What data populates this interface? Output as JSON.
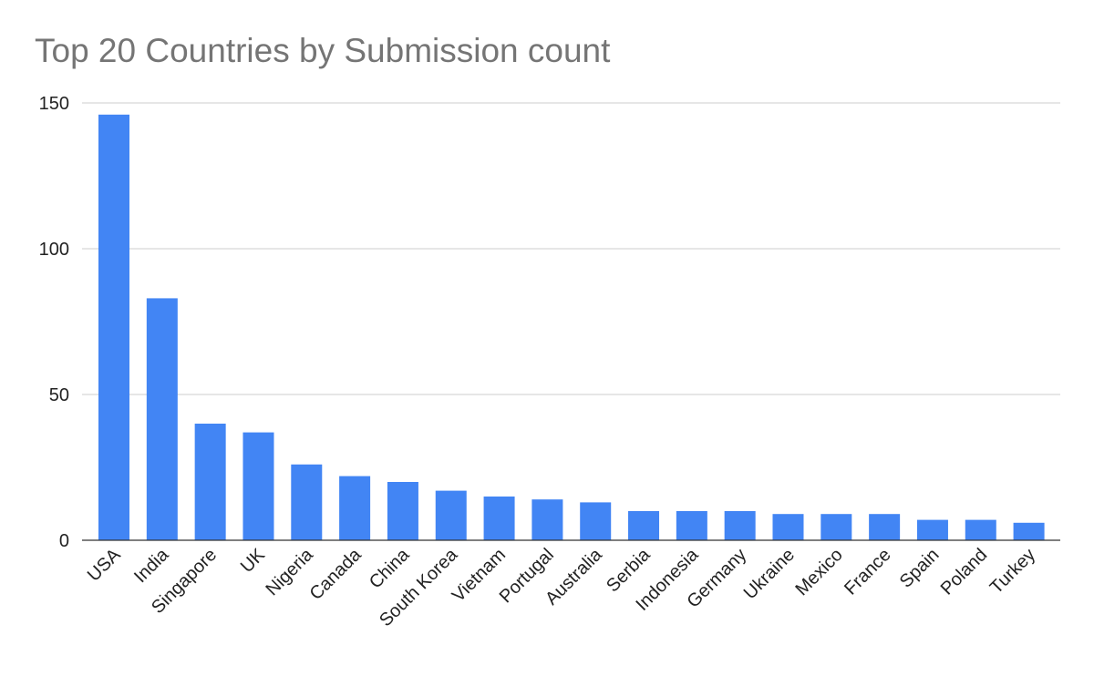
{
  "chart_data": {
    "type": "bar",
    "title": "Top 20 Countries by Submission count",
    "categories": [
      "USA",
      "India",
      "Singapore",
      "UK",
      "Nigeria",
      "Canada",
      "China",
      "South Korea",
      "Vietnam",
      "Portugal",
      "Australia",
      "Serbia",
      "Indonesia",
      "Germany",
      "Ukraine",
      "Mexico",
      "France",
      "Spain",
      "Poland",
      "Turkey"
    ],
    "values": [
      146,
      83,
      40,
      37,
      26,
      22,
      20,
      17,
      15,
      14,
      13,
      10,
      10,
      10,
      9,
      9,
      9,
      7,
      7,
      6
    ],
    "color": "#4285f4",
    "ylim": [
      0,
      150
    ],
    "yticks": [
      0,
      50,
      100,
      150
    ],
    "grid": true
  }
}
